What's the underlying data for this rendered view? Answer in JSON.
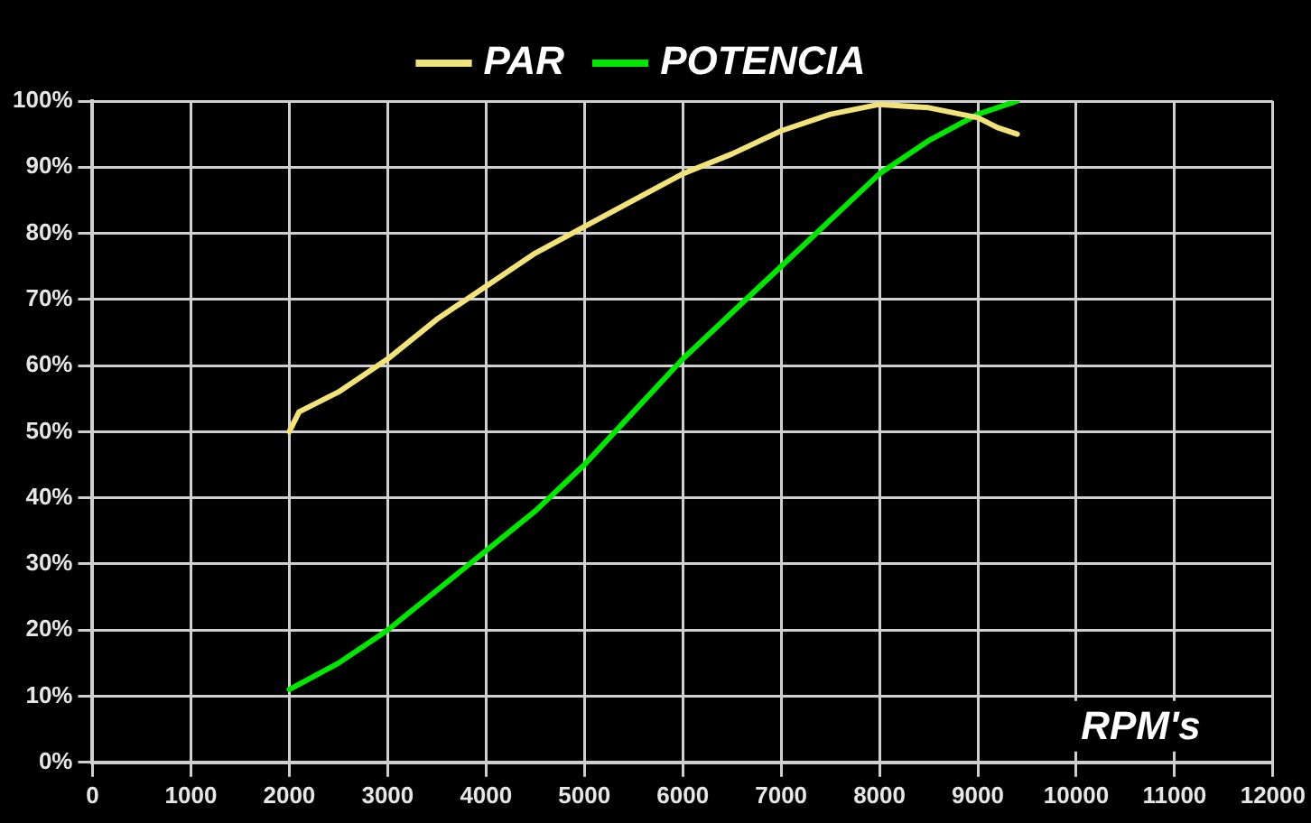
{
  "chart_data": {
    "type": "line",
    "xlabel": "RPM's",
    "series": [
      {
        "name": "PAR",
        "color": "#f2e27a",
        "x": [
          2000,
          2100,
          2500,
          3000,
          3500,
          4000,
          4500,
          5000,
          5500,
          6000,
          6500,
          7000,
          7500,
          8000,
          8500,
          9000,
          9200,
          9400
        ],
        "values": [
          50,
          53,
          56,
          61,
          67,
          72,
          77,
          81,
          85,
          89,
          92,
          95.5,
          98,
          99.5,
          99,
          97.5,
          96,
          95
        ]
      },
      {
        "name": "POTENCIA",
        "color": "#00e600",
        "x": [
          2000,
          2500,
          3000,
          3500,
          4000,
          4500,
          5000,
          5500,
          6000,
          6500,
          7000,
          7500,
          8000,
          8500,
          9000,
          9400
        ],
        "values": [
          11,
          15,
          20,
          26,
          32,
          38,
          45,
          53,
          61,
          68,
          75,
          82,
          89,
          94,
          98,
          100
        ]
      }
    ],
    "xlim": [
      0,
      12000
    ],
    "xticks": [
      0,
      1000,
      2000,
      3000,
      4000,
      5000,
      6000,
      7000,
      8000,
      9000,
      10000,
      11000,
      12000
    ],
    "ylim": [
      0,
      100
    ],
    "yticks": [
      {
        "value": 0,
        "label": "0%"
      },
      {
        "value": 10,
        "label": "10%"
      },
      {
        "value": 20,
        "label": "20%"
      },
      {
        "value": 30,
        "label": "30%"
      },
      {
        "value": 40,
        "label": "40%"
      },
      {
        "value": 50,
        "label": "50%"
      },
      {
        "value": 60,
        "label": "60%"
      },
      {
        "value": 70,
        "label": "70%"
      },
      {
        "value": 80,
        "label": "80%"
      },
      {
        "value": 90,
        "label": "90%"
      },
      {
        "value": 100,
        "label": "100%"
      }
    ],
    "grid": true,
    "legend": "top",
    "marker": "none",
    "line_style": "solid"
  }
}
